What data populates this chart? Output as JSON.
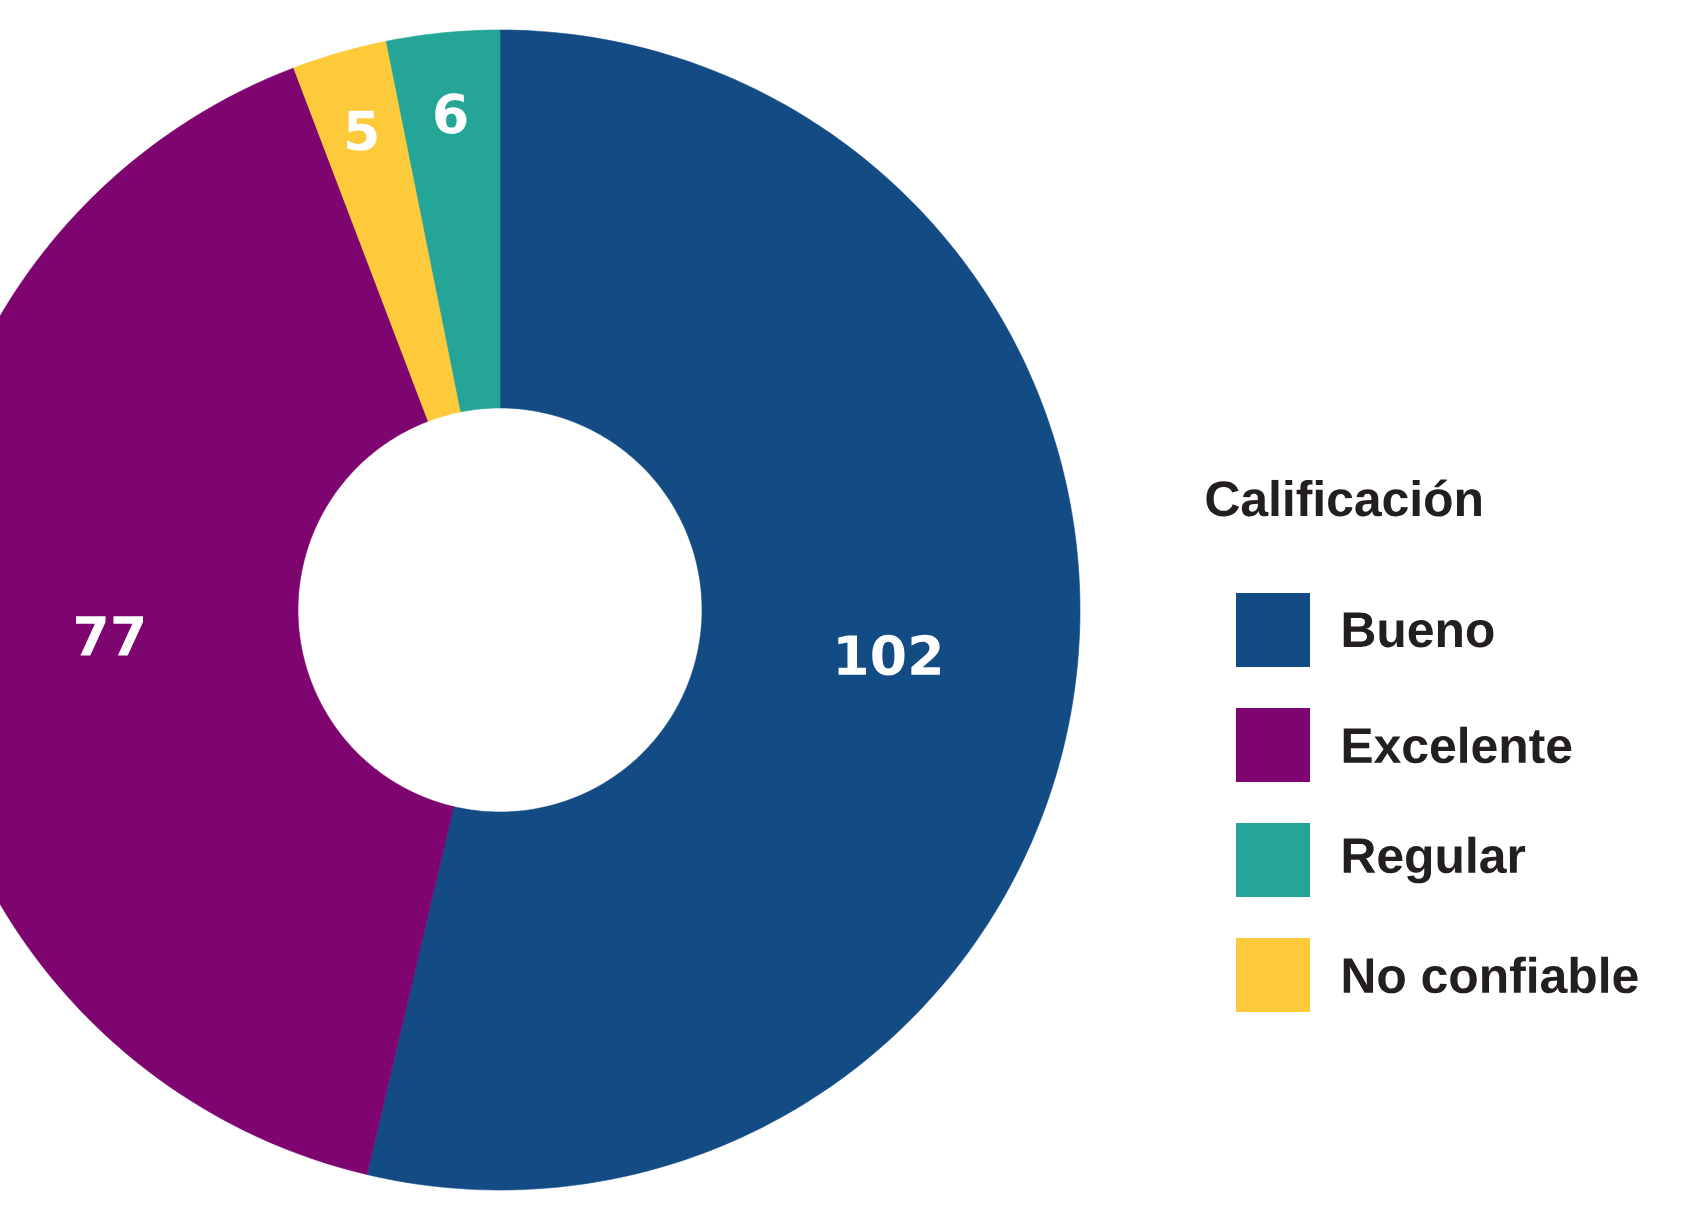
{
  "chart_data": {
    "type": "donut",
    "legend_title": "Calificación",
    "categories": [
      "Bueno",
      "Excelente",
      "Regular",
      "No confiable"
    ],
    "values": [
      102,
      77,
      6,
      5
    ],
    "colors": [
      "#134b84",
      "#7e046f",
      "#25a597",
      "#fcca3a"
    ],
    "data_labels": true,
    "legend": "right"
  }
}
